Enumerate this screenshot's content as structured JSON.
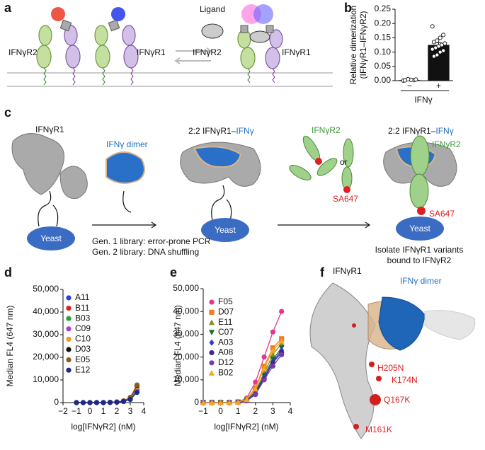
{
  "panel_labels": [
    "a",
    "b",
    "c",
    "d",
    "e",
    "f"
  ],
  "diagram_a": {
    "ligand": "Ligand",
    "left_r2": "IFNγR2",
    "left_r1": "IFNγR1",
    "right_r2": "IFNγR2",
    "right_r1": "IFNγR1"
  },
  "diagram_c": {
    "r1": "IFNγR1",
    "dimer": "IFNγ dimer",
    "complex_1": [
      "2:2 IFNγR1–",
      "IFNγ"
    ],
    "r2": "IFNγR2",
    "or": "or",
    "sa647_1": "SA647",
    "complex_2": [
      "2:2 IFNγR1–",
      "IFNγ"
    ],
    "r2_bound": "IFNγR2",
    "sa647_2": "SA647",
    "yeast": [
      "Yeast",
      "Yeast",
      "Yeast"
    ],
    "library": [
      "Gen. 1 library: error-prone PCR",
      "Gen. 2 library: DNA shuffling"
    ],
    "isolate": [
      "Isolate IFNγR1 variants",
      "bound to IFNγR2"
    ]
  },
  "diagram_f": {
    "r1": "IFNγR1",
    "dimer": "IFNγ dimer",
    "mutations": [
      "H205N",
      "K174N",
      "Q167K",
      "M161K"
    ]
  },
  "chart_data": [
    {
      "type": "bar",
      "ylabel": [
        "Relative dimerization",
        "(IFNγR1–IFNγR2)"
      ],
      "xlabel": "IFNγ",
      "categories": [
        "−",
        "+"
      ],
      "values": [
        0.002,
        0.125
      ],
      "errors": [
        0.001,
        0.008
      ],
      "color": "#111111",
      "points": [
        [
          0,
          0.002,
          0.003,
          0.005,
          0.001,
          0.004
        ],
        [
          0.19,
          0.16,
          0.15,
          0.14,
          0.135,
          0.13,
          0.125,
          0.12,
          0.115,
          0.11,
          0.105,
          0.1,
          0.09,
          0.085
        ]
      ],
      "ylim": [
        0,
        0.25
      ],
      "yticks": [
        {
          "value": 0,
          "label": "0.00"
        },
        0.05,
        {
          "value": 0.1,
          "label": "0.10"
        },
        0.15,
        {
          "value": 0.2,
          "label": "0.20"
        },
        0.25
      ]
    },
    {
      "type": "line",
      "ylabel": "Median FL4 (647 nm)",
      "xlabel": "log[IFNγR2] (nM)",
      "x": [
        -1,
        -0.5,
        0,
        0.5,
        1,
        1.5,
        2,
        2.5,
        3,
        3.5
      ],
      "series": [
        {
          "name": "A11",
          "color": "#2a3cf0",
          "marker": "circle",
          "values": [
            0,
            0,
            0,
            0,
            0,
            100,
            200,
            500,
            1500,
            5000
          ]
        },
        {
          "name": "B11",
          "color": "#e0201b",
          "marker": "circle",
          "values": [
            0,
            0,
            0,
            0,
            0,
            100,
            200,
            500,
            1600,
            5500
          ]
        },
        {
          "name": "B03",
          "color": "#22a23a",
          "marker": "circle",
          "values": [
            0,
            0,
            0,
            0,
            0,
            100,
            200,
            500,
            1500,
            5200
          ]
        },
        {
          "name": "C09",
          "color": "#a83cd8",
          "marker": "circle",
          "values": [
            0,
            0,
            0,
            0,
            0,
            100,
            200,
            600,
            1800,
            6000
          ]
        },
        {
          "name": "C10",
          "color": "#f0962a",
          "marker": "circle",
          "values": [
            0,
            0,
            0,
            0,
            0,
            100,
            300,
            700,
            2000,
            7000
          ]
        },
        {
          "name": "D03",
          "color": "#111111",
          "marker": "circle",
          "values": [
            0,
            0,
            0,
            0,
            0,
            100,
            300,
            700,
            2200,
            7500
          ]
        },
        {
          "name": "E05",
          "color": "#8a5a1e",
          "marker": "circle",
          "values": [
            0,
            0,
            0,
            0,
            0,
            100,
            300,
            800,
            2300,
            7800
          ]
        },
        {
          "name": "E12",
          "color": "#1b2a8a",
          "marker": "circle",
          "values": [
            0,
            0,
            0,
            0,
            0,
            100,
            200,
            500,
            1400,
            4500
          ]
        }
      ],
      "xlim": [
        -2,
        4
      ],
      "xticks": [
        {
          "value": -2,
          "label": "−2"
        },
        {
          "value": -1,
          "label": "−1"
        },
        0,
        1,
        2,
        3,
        4
      ],
      "ylim": [
        0,
        50000
      ],
      "yticks": [
        0,
        {
          "value": 10000,
          "label": "10,000"
        },
        {
          "value": 20000,
          "label": "20,000"
        },
        {
          "value": 30000,
          "label": "30,000"
        },
        {
          "value": 40000,
          "label": "40,000"
        },
        {
          "value": 50000,
          "label": "50,000"
        }
      ],
      "legend": "upper left"
    },
    {
      "type": "line",
      "ylabel": "Median FL4 (647 nm)",
      "xlabel": "log[IFNγR2] (nM)",
      "x": [
        -1,
        -0.5,
        0,
        0.5,
        1,
        1.5,
        2,
        2.5,
        3,
        3.5
      ],
      "series": [
        {
          "name": "F05",
          "color": "#e6358f",
          "marker": "circle",
          "values": [
            0,
            0,
            0,
            0,
            300,
            2000,
            9000,
            20000,
            31000,
            40000
          ]
        },
        {
          "name": "D07",
          "color": "#f07d1e",
          "marker": "square",
          "values": [
            0,
            0,
            0,
            0,
            200,
            1500,
            6500,
            16000,
            24000,
            28000
          ]
        },
        {
          "name": "E11",
          "color": "#8c8c28",
          "marker": "triangle-up",
          "values": [
            0,
            0,
            0,
            0,
            200,
            1200,
            5000,
            13000,
            21000,
            26000
          ]
        },
        {
          "name": "C07",
          "color": "#1d6b2e",
          "marker": "triangle-down",
          "values": [
            0,
            0,
            0,
            0,
            200,
            1000,
            4500,
            12000,
            19000,
            24000
          ]
        },
        {
          "name": "A03",
          "color": "#2b3fd6",
          "marker": "diamond",
          "values": [
            0,
            0,
            0,
            0,
            200,
            1000,
            4000,
            11000,
            18000,
            23000
          ]
        },
        {
          "name": "A08",
          "color": "#3b2a8c",
          "marker": "circle",
          "values": [
            0,
            0,
            0,
            0,
            150,
            900,
            3800,
            10500,
            17500,
            22000
          ]
        },
        {
          "name": "D12",
          "color": "#7a3aa8",
          "marker": "circle",
          "values": [
            0,
            0,
            0,
            0,
            150,
            800,
            3500,
            10000,
            16000,
            21000
          ]
        },
        {
          "name": "B02",
          "color": "#f5a623",
          "marker": "triangle-up",
          "values": [
            0,
            0,
            0,
            0,
            200,
            1400,
            6000,
            15000,
            23000,
            27000
          ]
        }
      ],
      "xlim": [
        -1,
        4
      ],
      "xticks": [
        {
          "value": -1,
          "label": "−1"
        },
        0,
        1,
        2,
        3,
        4
      ],
      "ylim": [
        0,
        50000
      ],
      "yticks": [
        0,
        {
          "value": 10000,
          "label": "10,000"
        },
        {
          "value": 20000,
          "label": "20,000"
        },
        {
          "value": 30000,
          "label": "30,000"
        },
        {
          "value": 40000,
          "label": "40,000"
        },
        {
          "value": 50000,
          "label": "50,000"
        }
      ],
      "legend": "upper left"
    }
  ]
}
